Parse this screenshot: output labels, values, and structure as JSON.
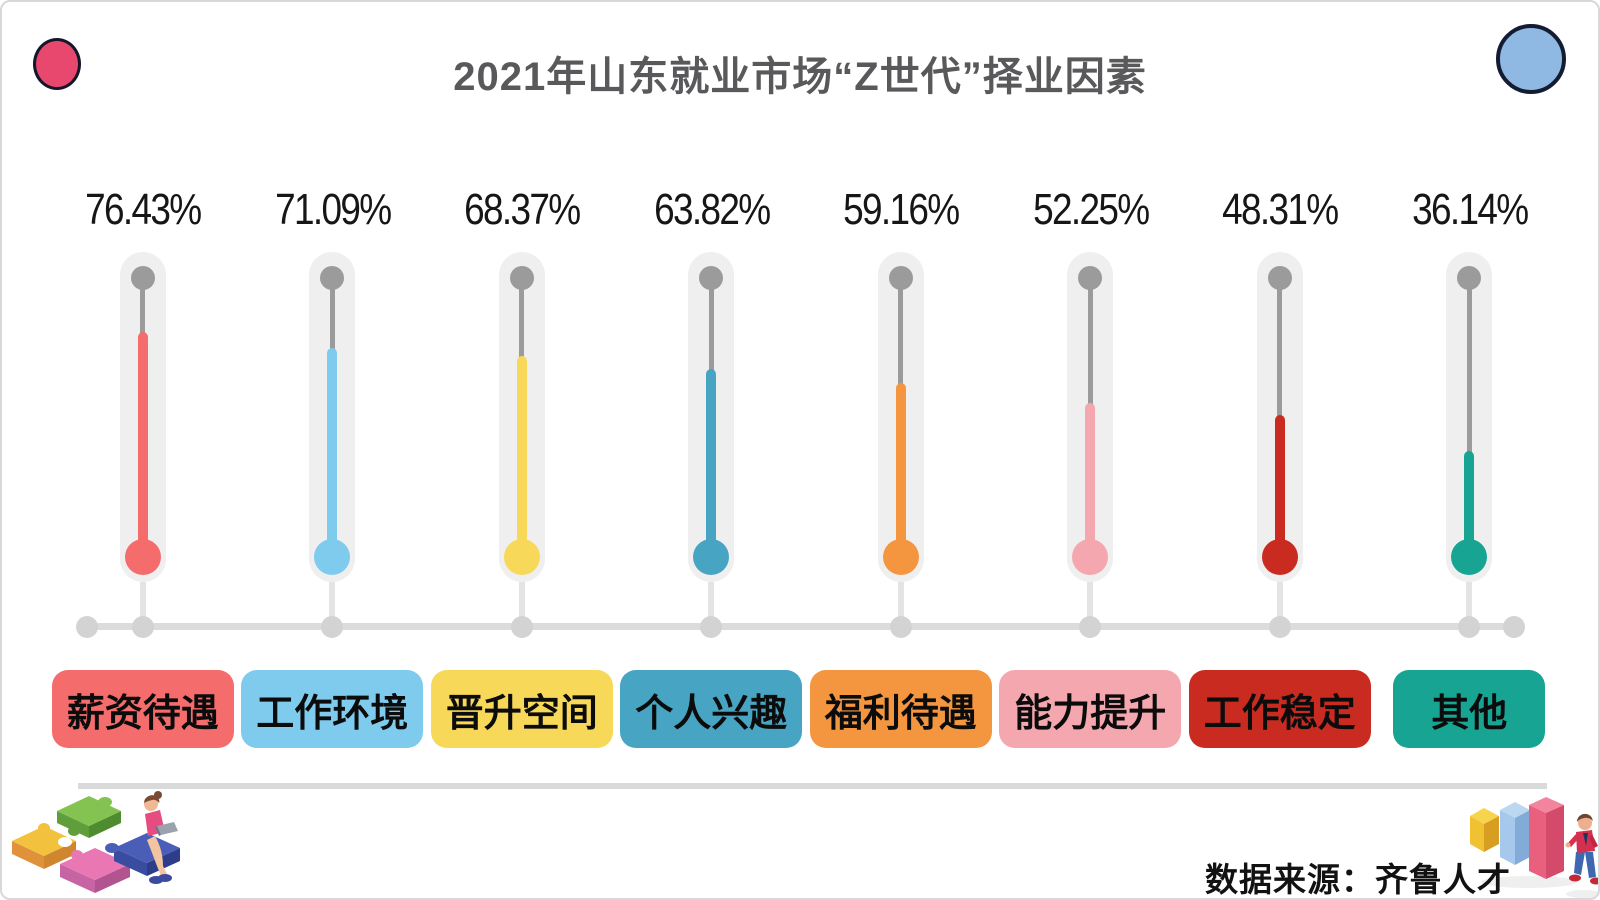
{
  "title": "2021年山东就业市场“Z世代”择业因素",
  "source_label": "数据来源：齐鲁人才",
  "decor": {
    "left_circle_color": "#e8486e",
    "right_circle_color": "#8fb9e2"
  },
  "chart_data": {
    "type": "bar",
    "variant": "thermometer",
    "title": "2021年山东就业市场“Z世代”择业因素",
    "categories": [
      "薪资待遇",
      "工作环境",
      "晋升空间",
      "个人兴趣",
      "福利待遇",
      "能力提升",
      "工作稳定",
      "其他"
    ],
    "values": [
      76.43,
      71.09,
      68.37,
      63.82,
      59.16,
      52.25,
      48.31,
      36.14
    ],
    "value_labels": [
      "76.43%",
      "71.09%",
      "68.37%",
      "63.82%",
      "59.16%",
      "52.25%",
      "48.31%",
      "36.14%"
    ],
    "colors": [
      "#f56c6c",
      "#7fcbee",
      "#f7d858",
      "#47a5c3",
      "#f4963f",
      "#f4a7ae",
      "#c92b21",
      "#17a492"
    ],
    "ylim": [
      0,
      100
    ],
    "xlabel": "",
    "ylabel": "",
    "grid": false,
    "legend": false,
    "source": "数据来源：齐鲁人才"
  }
}
